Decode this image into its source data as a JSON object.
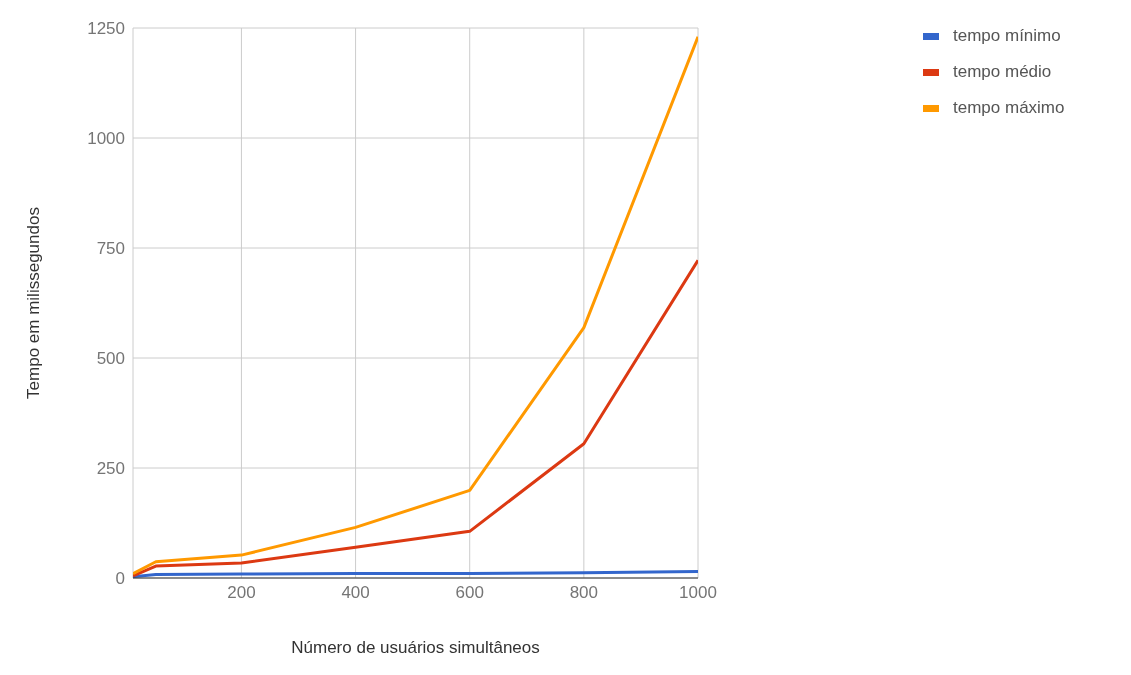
{
  "chart_data": {
    "type": "line",
    "xlabel": "Número de usuários simultâneos",
    "ylabel": "Tempo em milissegundos",
    "x": [
      10,
      50,
      200,
      400,
      600,
      800,
      1000
    ],
    "series": [
      {
        "name": "tempo mínimo",
        "color": "#3366cc",
        "values": [
          3,
          8,
          9,
          10,
          10,
          12,
          15
        ]
      },
      {
        "name": "tempo médio",
        "color": "#dc3912",
        "values": [
          5,
          27,
          34,
          70,
          106,
          305,
          722
        ]
      },
      {
        "name": "tempo máximo",
        "color": "#ff9900",
        "values": [
          10,
          37,
          52,
          115,
          199,
          569,
          1230
        ]
      }
    ],
    "xlim": [
      10,
      1000
    ],
    "xticks": [
      200,
      400,
      600,
      800,
      1000
    ],
    "ylim": [
      0,
      1250
    ],
    "yticks": [
      0,
      250,
      500,
      750,
      1000,
      1250
    ],
    "grid": true,
    "legend": "top right",
    "marker": "none",
    "line_style": "solid"
  }
}
